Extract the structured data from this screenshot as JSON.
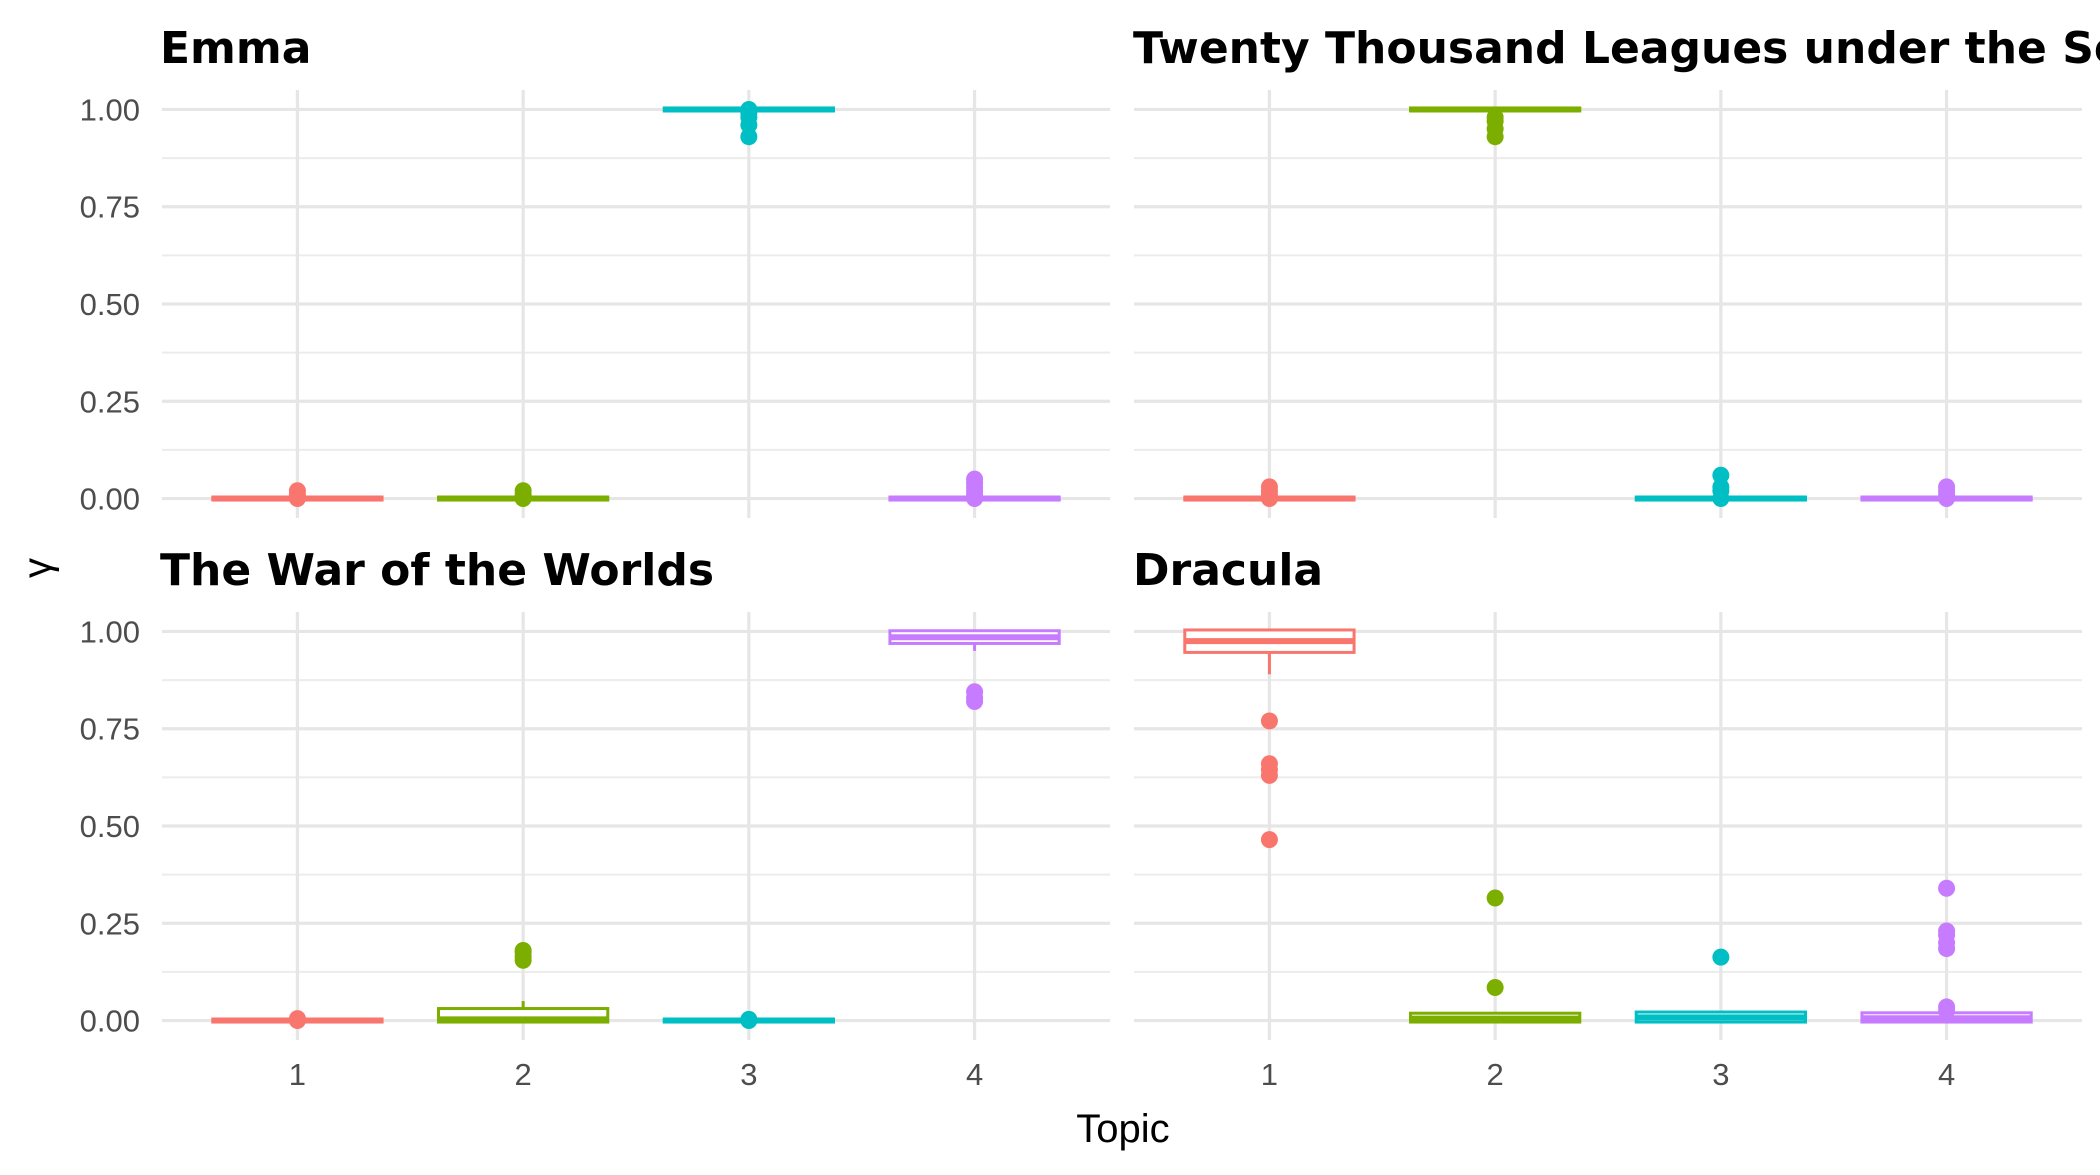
{
  "chart_data": {
    "type": "boxplot",
    "layout": "facet-wrap 2x2",
    "xlabel": "Topic",
    "ylabel": "γ",
    "categories": [
      "1",
      "2",
      "3",
      "4"
    ],
    "yticks": [
      "0.00",
      "0.25",
      "0.50",
      "0.75",
      "1.00"
    ],
    "ylim": [
      -0.05,
      1.05
    ],
    "grid": true,
    "legend": "none",
    "topic_colors": [
      "#F8766D",
      "#7CAE00",
      "#00BFC4",
      "#C77CFF"
    ],
    "panels": [
      {
        "title": "Emma",
        "boxes": [
          {
            "topic": "1",
            "q1": 0.0,
            "median": 0.0,
            "q3": 0.0,
            "whisker_low": 0.0,
            "whisker_high": 0.0,
            "outliers": [
              0.0,
              0.01,
              0.02
            ]
          },
          {
            "topic": "2",
            "q1": 0.0,
            "median": 0.0,
            "q3": 0.0,
            "whisker_low": 0.0,
            "whisker_high": 0.0,
            "outliers": [
              0.0,
              0.01,
              0.02
            ]
          },
          {
            "topic": "3",
            "q1": 1.0,
            "median": 1.0,
            "q3": 1.0,
            "whisker_low": 1.0,
            "whisker_high": 1.0,
            "outliers": [
              0.93,
              0.96,
              0.98,
              0.99,
              1.0
            ]
          },
          {
            "topic": "4",
            "q1": 0.0,
            "median": 0.0,
            "q3": 0.0,
            "whisker_low": 0.0,
            "whisker_high": 0.0,
            "outliers": [
              0.0,
              0.01,
              0.02,
              0.03,
              0.04,
              0.05
            ]
          }
        ]
      },
      {
        "title": "Twenty Thousand Leagues under the Sea",
        "boxes": [
          {
            "topic": "1",
            "q1": 0.0,
            "median": 0.0,
            "q3": 0.0,
            "whisker_low": 0.0,
            "whisker_high": 0.0,
            "outliers": [
              0.0,
              0.01,
              0.02,
              0.03
            ]
          },
          {
            "topic": "2",
            "q1": 1.0,
            "median": 1.0,
            "q3": 1.0,
            "whisker_low": 1.0,
            "whisker_high": 1.0,
            "outliers": [
              0.93,
              0.95,
              0.97,
              0.98
            ]
          },
          {
            "topic": "3",
            "q1": 0.0,
            "median": 0.0,
            "q3": 0.0,
            "whisker_low": 0.0,
            "whisker_high": 0.0,
            "outliers": [
              0.0,
              0.02,
              0.03,
              0.06
            ]
          },
          {
            "topic": "4",
            "q1": 0.0,
            "median": 0.0,
            "q3": 0.0,
            "whisker_low": 0.0,
            "whisker_high": 0.0,
            "outliers": [
              0.0,
              0.01,
              0.02,
              0.03
            ]
          }
        ]
      },
      {
        "title": "The War of the Worlds",
        "boxes": [
          {
            "topic": "1",
            "q1": 0.0,
            "median": 0.0,
            "q3": 0.0,
            "whisker_low": 0.0,
            "whisker_high": 0.0,
            "outliers": [
              0.0,
              0.005
            ]
          },
          {
            "topic": "2",
            "q1": 0.0,
            "median": 0.003,
            "q3": 0.027,
            "whisker_low": 0.0,
            "whisker_high": 0.05,
            "outliers": [
              0.155,
              0.165,
              0.175,
              0.18
            ]
          },
          {
            "topic": "3",
            "q1": 0.0,
            "median": 0.0,
            "q3": 0.0,
            "whisker_low": 0.0,
            "whisker_high": 0.0,
            "outliers": [
              0.0,
              0.003
            ]
          },
          {
            "topic": "4",
            "q1": 0.973,
            "median": 0.985,
            "q3": 0.998,
            "whisker_low": 0.95,
            "whisker_high": 1.0,
            "outliers": [
              0.82,
              0.83,
              0.845
            ]
          }
        ]
      },
      {
        "title": "Dracula",
        "boxes": [
          {
            "topic": "1",
            "q1": 0.95,
            "median": 0.975,
            "q3": 1.0,
            "whisker_low": 0.89,
            "whisker_high": 1.0,
            "outliers": [
              0.465,
              0.63,
              0.645,
              0.66,
              0.77
            ]
          },
          {
            "topic": "2",
            "q1": 0.0,
            "median": 0.005,
            "q3": 0.015,
            "whisker_low": 0.0,
            "whisker_high": 0.015,
            "outliers": [
              0.085,
              0.315
            ]
          },
          {
            "topic": "3",
            "q1": 0.0,
            "median": 0.008,
            "q3": 0.018,
            "whisker_low": 0.0,
            "whisker_high": 0.025,
            "outliers": [
              0.163
            ]
          },
          {
            "topic": "4",
            "q1": 0.0,
            "median": 0.006,
            "q3": 0.016,
            "whisker_low": 0.0,
            "whisker_high": 0.016,
            "outliers": [
              0.025,
              0.035,
              0.185,
              0.2,
              0.22,
              0.23,
              0.34
            ]
          }
        ]
      }
    ]
  }
}
